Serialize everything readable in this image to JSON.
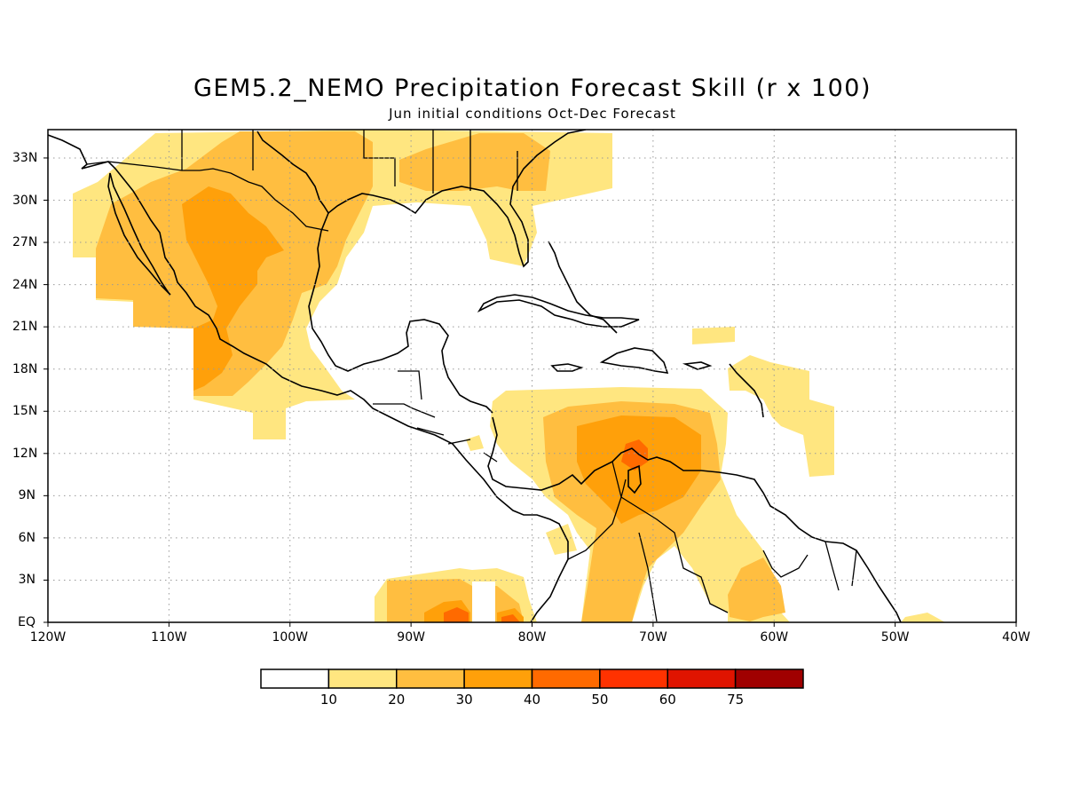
{
  "title": "GEM5.2_NEMO Precipitation Forecast Skill (r x 100)",
  "subtitle": "Jun initial conditions  Oct-Dec Forecast",
  "map": {
    "lon_range": [
      -120,
      -40
    ],
    "lat_range": [
      0,
      35
    ],
    "grid": "dotted",
    "lat_ticks": [
      {
        "value": 33,
        "label": "33N"
      },
      {
        "value": 30,
        "label": "30N"
      },
      {
        "value": 27,
        "label": "27N"
      },
      {
        "value": 24,
        "label": "24N"
      },
      {
        "value": 21,
        "label": "21N"
      },
      {
        "value": 18,
        "label": "18N"
      },
      {
        "value": 15,
        "label": "15N"
      },
      {
        "value": 12,
        "label": "12N"
      },
      {
        "value": 9,
        "label": "9N"
      },
      {
        "value": 6,
        "label": "6N"
      },
      {
        "value": 3,
        "label": "3N"
      },
      {
        "value": 0,
        "label": "EQ"
      }
    ],
    "lon_ticks": [
      {
        "value": -120,
        "label": "120W"
      },
      {
        "value": -110,
        "label": "110W"
      },
      {
        "value": -100,
        "label": "100W"
      },
      {
        "value": -90,
        "label": "90W"
      },
      {
        "value": -80,
        "label": "80W"
      },
      {
        "value": -70,
        "label": "70W"
      },
      {
        "value": -60,
        "label": "60W"
      },
      {
        "value": -50,
        "label": "50W"
      },
      {
        "value": -40,
        "label": "40W"
      }
    ]
  },
  "colorbar": {
    "colors": [
      "#ffffff",
      "#ffe680",
      "#ffbe40",
      "#ffa00a",
      "#ff6a00",
      "#ff3200",
      "#e01400",
      "#a00000"
    ],
    "labels": [
      "10",
      "20",
      "30",
      "40",
      "50",
      "60",
      "75"
    ]
  }
}
